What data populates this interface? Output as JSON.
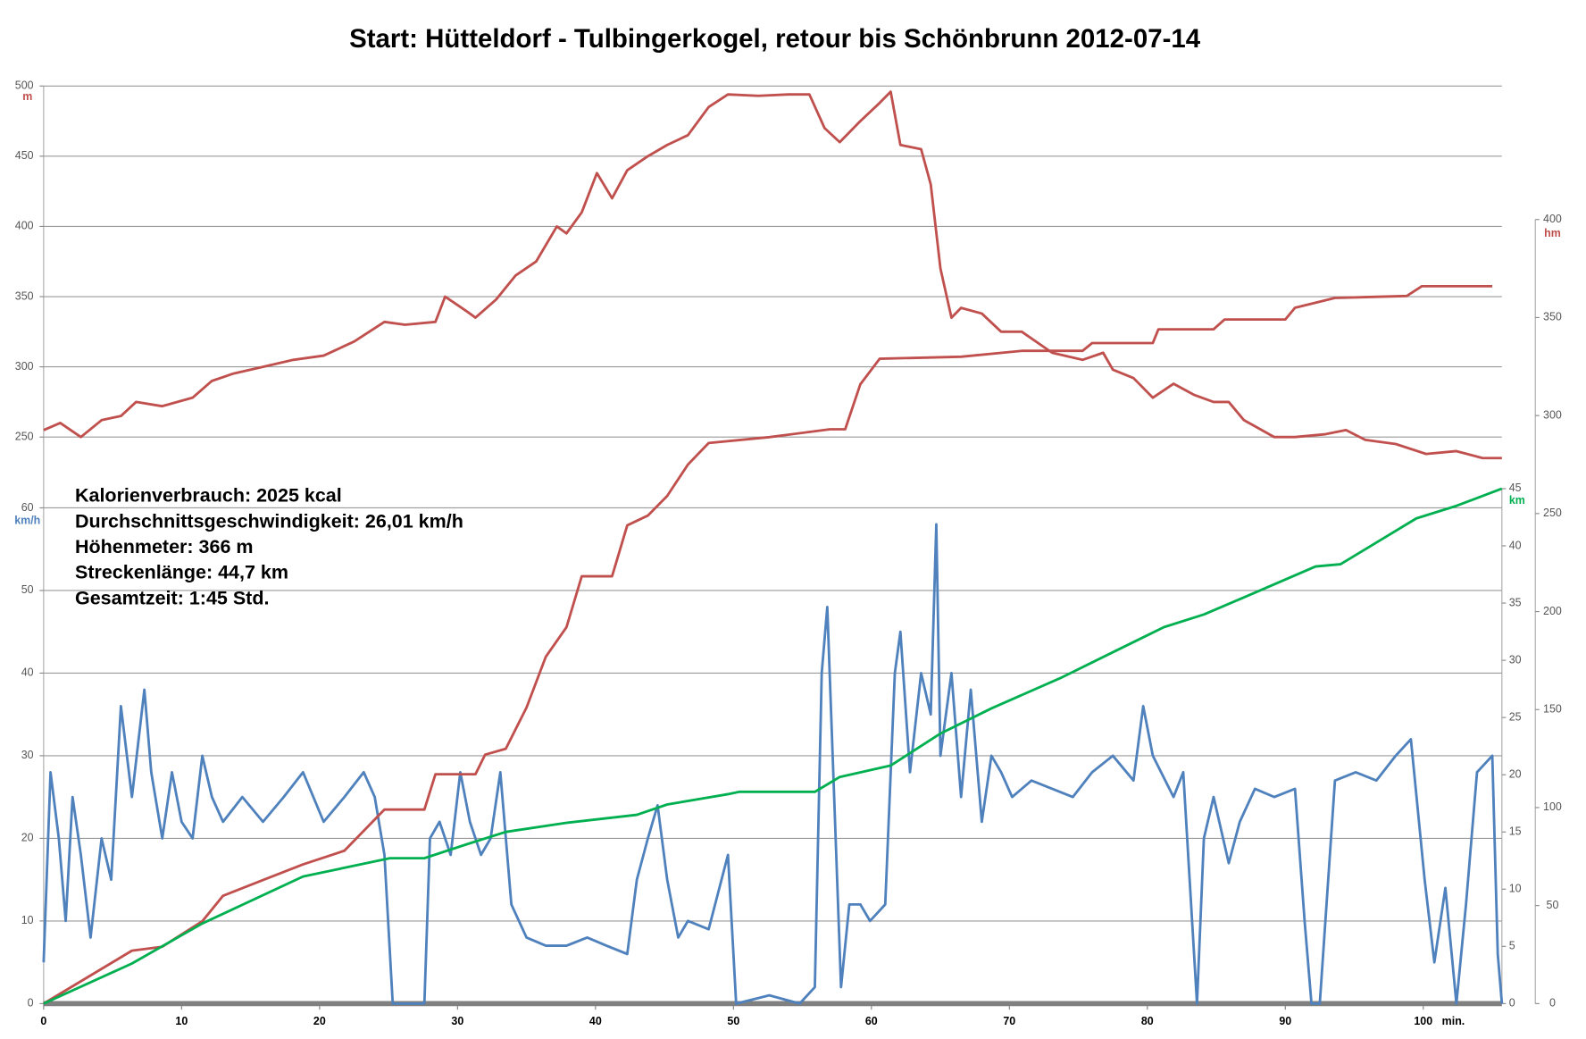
{
  "chart_data": {
    "type": "line",
    "title": "Start: Hütteldorf - Tulbingerkogel, retour bis Schönbrunn    2012-07-14",
    "annotations": [
      "Kalorienverbrauch: 2025 kcal",
      "Durchschnittsgeschwindigkeit: 26,01 km/h",
      "Höhenmeter: 366 m",
      "Streckenlänge: 44,7 km",
      "Gesamtzeit: 1:45 Std."
    ],
    "x_label": "min.",
    "xlim": [
      0,
      105.7
    ],
    "xticks": [
      0,
      10,
      20,
      30,
      40,
      50,
      60,
      70,
      80,
      90,
      100
    ],
    "y_label": "m",
    "ylim": [
      250,
      500
    ],
    "yticks": [
      250,
      300,
      350,
      400,
      450,
      500
    ],
    "y2_label": "hm",
    "y2lim": [
      0,
      400
    ],
    "y2ticks": [
      0,
      50,
      100,
      150,
      200,
      250,
      300,
      350,
      400
    ],
    "y3_label": "km/h",
    "y3lim": [
      0,
      60
    ],
    "y3ticks": [
      0,
      10,
      20,
      30,
      40,
      50,
      60
    ],
    "y4_label": "km",
    "y4lim": [
      0,
      45
    ],
    "y4ticks": [
      0,
      5,
      10,
      15,
      20,
      25,
      30,
      35,
      40,
      45
    ],
    "grid": true,
    "series": [
      {
        "axis": "y3",
        "color": "#4f81bd",
        "x": [
          0,
          0.5,
          1.1,
          1.6,
          2.1,
          2.7,
          3.4,
          4.2,
          4.9,
          5.6,
          6.4,
          7.3,
          7.8,
          8.6,
          9.3,
          10,
          10.8,
          11.5,
          12.2,
          13,
          14.4,
          15.9,
          17.4,
          18.8,
          20.3,
          21.8,
          23.2,
          24,
          24.7,
          25.3,
          27.6,
          28,
          28.7,
          29.5,
          30.2,
          30.9,
          31.7,
          32.4,
          33.1,
          33.9,
          35,
          36.4,
          37.9,
          39.4,
          40.8,
          42.3,
          43,
          43.8,
          44.5,
          45.2,
          46,
          46.7,
          48.2,
          49.6,
          50.2,
          52.6,
          54.8,
          55.9,
          56.4,
          56.8,
          57.3,
          57.8,
          58.4,
          59.2,
          59.9,
          61,
          61.7,
          62.1,
          62.8,
          63.6,
          64.3,
          64.7,
          65,
          65.8,
          66.5,
          67.2,
          68,
          68.7,
          69.4,
          70.2,
          71.6,
          73.1,
          74.6,
          76,
          77.5,
          79,
          79.7,
          80.4,
          81.9,
          82.6,
          83.6,
          84.1,
          84.8,
          85.9,
          86.7,
          87.8,
          89.2,
          90.7,
          91.4,
          91.9,
          92.5,
          93.6,
          95.1,
          96.6,
          98,
          99.1,
          100.1,
          100.8,
          101.6,
          102.4,
          103.1,
          103.9,
          105,
          105.4,
          105.7
        ],
        "values": [
          5,
          28,
          20,
          10,
          25,
          18,
          8,
          20,
          15,
          36,
          25,
          38,
          28,
          20,
          28,
          22,
          20,
          30,
          25,
          22,
          25,
          22,
          25,
          28,
          22,
          25,
          28,
          25,
          18,
          0,
          0,
          20,
          22,
          18,
          28,
          22,
          18,
          20,
          28,
          12,
          8,
          7,
          7,
          8,
          7,
          6,
          15,
          20,
          24,
          15,
          8,
          10,
          9,
          18,
          0,
          1,
          0,
          2,
          40,
          48,
          25,
          2,
          12,
          12,
          10,
          12,
          40,
          45,
          28,
          40,
          35,
          58,
          30,
          40,
          25,
          38,
          22,
          30,
          28,
          25,
          27,
          26,
          25,
          28,
          30,
          27,
          36,
          30,
          25,
          28,
          0,
          20,
          25,
          17,
          22,
          26,
          25,
          26,
          10,
          0,
          0,
          27,
          28,
          27,
          30,
          32,
          15,
          5,
          14,
          0,
          12,
          28,
          30,
          6,
          0
        ]
      },
      {
        "axis": "y2",
        "color": "#c0504d",
        "x": [
          0,
          6.4,
          8.6,
          11.5,
          13,
          15.9,
          18.8,
          21.8,
          24.7,
          27.6,
          28.4,
          31.3,
          32,
          33.5,
          35,
          36.4,
          37.9,
          39,
          41.2,
          42.3,
          43.8,
          45.2,
          46.7,
          48.2,
          52.6,
          57,
          58.1,
          59.2,
          60.6,
          66.5,
          70.9,
          75.3,
          76,
          80.4,
          80.8,
          84.8,
          85.6,
          90,
          90.7,
          93.6,
          98.8,
          99.9,
          105
        ],
        "values": [
          0,
          27,
          29,
          42,
          55,
          63,
          71,
          78,
          99,
          99,
          117,
          117,
          127,
          130,
          151,
          177,
          192,
          218,
          218,
          244,
          249,
          259,
          275,
          286,
          289,
          293,
          293,
          316,
          329,
          330,
          333,
          333,
          337,
          337,
          344,
          344,
          349,
          349,
          355,
          360,
          361,
          366,
          366
        ]
      },
      {
        "axis": "y",
        "color": "#c0504d",
        "x": [
          0,
          1.2,
          2.7,
          4.2,
          5.6,
          6.7,
          8.6,
          10.8,
          12.2,
          13.7,
          15.9,
          18.1,
          20.3,
          22.5,
          24.7,
          26.2,
          28.4,
          29.1,
          30.6,
          31.3,
          32.8,
          34.2,
          35.7,
          37.2,
          37.9,
          39,
          40.1,
          41.2,
          42.3,
          43.8,
          45.2,
          46.7,
          48.2,
          49.6,
          51.8,
          54,
          55.5,
          56.6,
          57.7,
          59.2,
          60.6,
          61.4,
          62.1,
          63.6,
          64.3,
          65,
          65.8,
          66.5,
          68,
          69.4,
          70.9,
          73.1,
          75.3,
          76.8,
          77.5,
          79,
          80.4,
          81.9,
          83.4,
          84.8,
          85.9,
          87,
          89.2,
          90.7,
          92.9,
          94.4,
          95.8,
          98,
          100.2,
          102.4,
          104.3,
          105.7
        ],
        "values": [
          255,
          260,
          250,
          262,
          265,
          275,
          272,
          278,
          290,
          295,
          300,
          305,
          308,
          318,
          332,
          330,
          332,
          350,
          340,
          335,
          348,
          365,
          375,
          400,
          395,
          410,
          438,
          420,
          440,
          450,
          458,
          465,
          485,
          494,
          493,
          494,
          494,
          470,
          460,
          475,
          488,
          496,
          458,
          455,
          430,
          370,
          335,
          342,
          338,
          325,
          325,
          310,
          305,
          310,
          298,
          292,
          278,
          288,
          280,
          275,
          275,
          262,
          250,
          250,
          252,
          255,
          248,
          245,
          238,
          240,
          235,
          235
        ]
      },
      {
        "axis": "y4",
        "color": "#00b050",
        "x": [
          0,
          6.4,
          11.5,
          18.8,
          25.1,
          27.6,
          30.6,
          33.5,
          37.9,
          43,
          45.2,
          49.6,
          50.4,
          55.9,
          57.7,
          61.4,
          65,
          68.7,
          73.8,
          77.5,
          81.2,
          84.1,
          87,
          92.2,
          94,
          99.5,
          102.4,
          105.7
        ],
        "values": [
          0,
          3.5,
          7,
          11.1,
          12.7,
          12.7,
          13.9,
          15,
          15.8,
          16.5,
          17.4,
          18.3,
          18.5,
          18.5,
          19.8,
          20.8,
          23.6,
          25.8,
          28.5,
          30.7,
          32.9,
          34,
          35.5,
          38.2,
          38.4,
          42.4,
          43.5,
          45
        ]
      }
    ]
  }
}
